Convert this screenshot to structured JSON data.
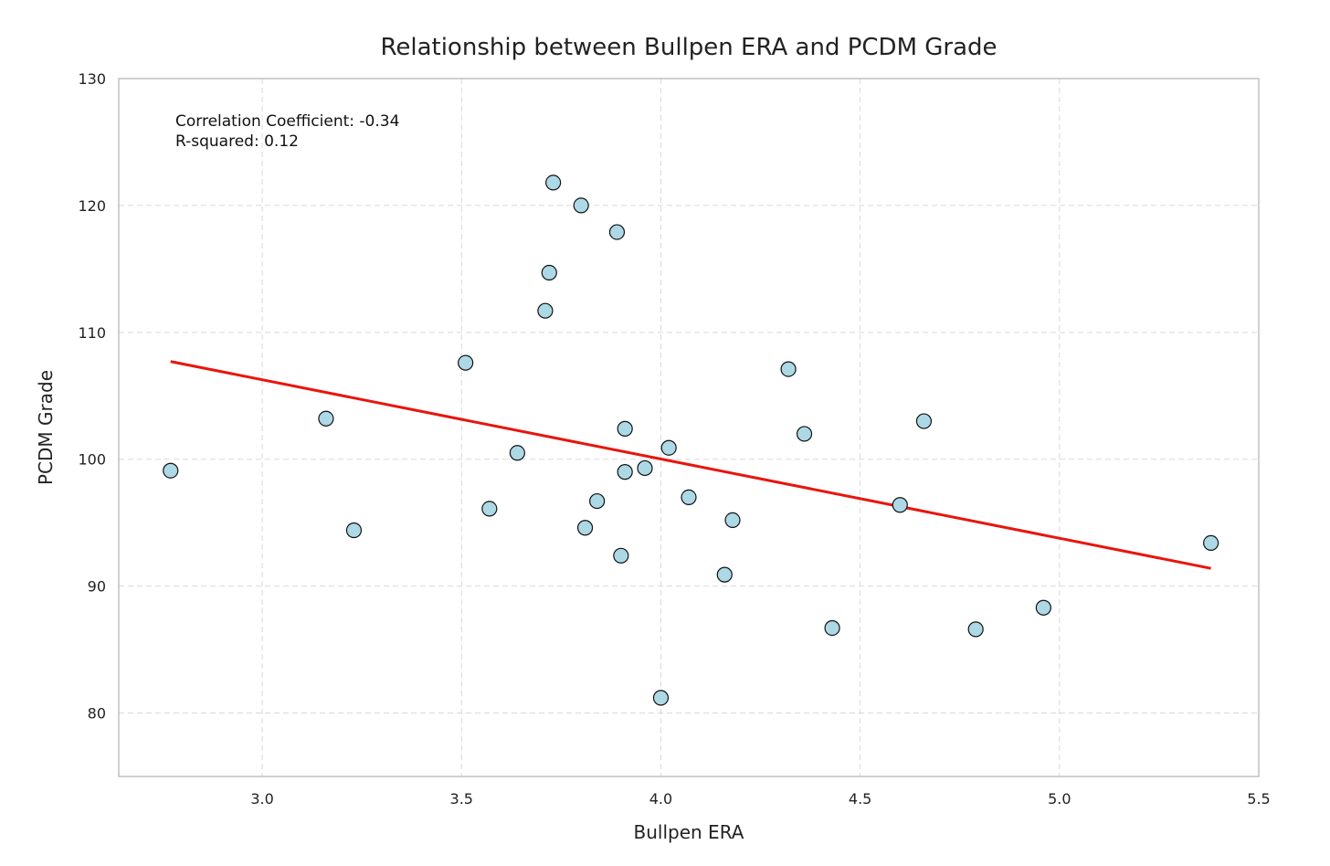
{
  "chart_data": {
    "type": "scatter",
    "title": "Relationship between Bullpen ERA and PCDM Grade",
    "xlabel": "Bullpen ERA",
    "ylabel": "PCDM Grade",
    "xlim": [
      2.64,
      5.5
    ],
    "ylim": [
      75,
      130
    ],
    "xticks": [
      3.0,
      3.5,
      4.0,
      4.5,
      5.0,
      5.5
    ],
    "yticks": [
      80,
      90,
      100,
      110,
      120,
      130
    ],
    "xtick_labels": [
      "3.0",
      "3.5",
      "4.0",
      "4.5",
      "5.0",
      "5.5"
    ],
    "ytick_labels": [
      "80",
      "90",
      "100",
      "110",
      "120",
      "130"
    ],
    "grid": true,
    "annotations": [
      "Correlation Coefficient: -0.34",
      "R-squared: 0.12"
    ],
    "point_color": "#add8e6",
    "fit_color": "#e8150d",
    "series": [
      {
        "x": [
          2.77,
          3.16,
          3.23,
          3.51,
          3.57,
          3.64,
          3.71,
          3.72,
          3.73,
          3.8,
          3.81,
          3.84,
          3.89,
          3.9,
          3.91,
          3.91,
          3.96,
          4.0,
          4.02,
          4.07,
          4.16,
          4.18,
          4.32,
          4.36,
          4.43,
          4.6,
          4.66,
          4.79,
          4.96,
          5.38
        ],
        "y": [
          99.1,
          103.2,
          94.4,
          107.6,
          96.1,
          100.5,
          111.7,
          114.7,
          121.8,
          120.0,
          94.6,
          96.7,
          117.9,
          92.4,
          102.4,
          99.0,
          99.3,
          81.2,
          100.9,
          97.0,
          90.9,
          95.2,
          107.1,
          102.0,
          86.7,
          96.4,
          103.0,
          86.6,
          88.3,
          93.4
        ]
      }
    ],
    "trendline": {
      "x": [
        2.77,
        5.38
      ],
      "y": [
        107.7,
        91.4
      ]
    }
  }
}
